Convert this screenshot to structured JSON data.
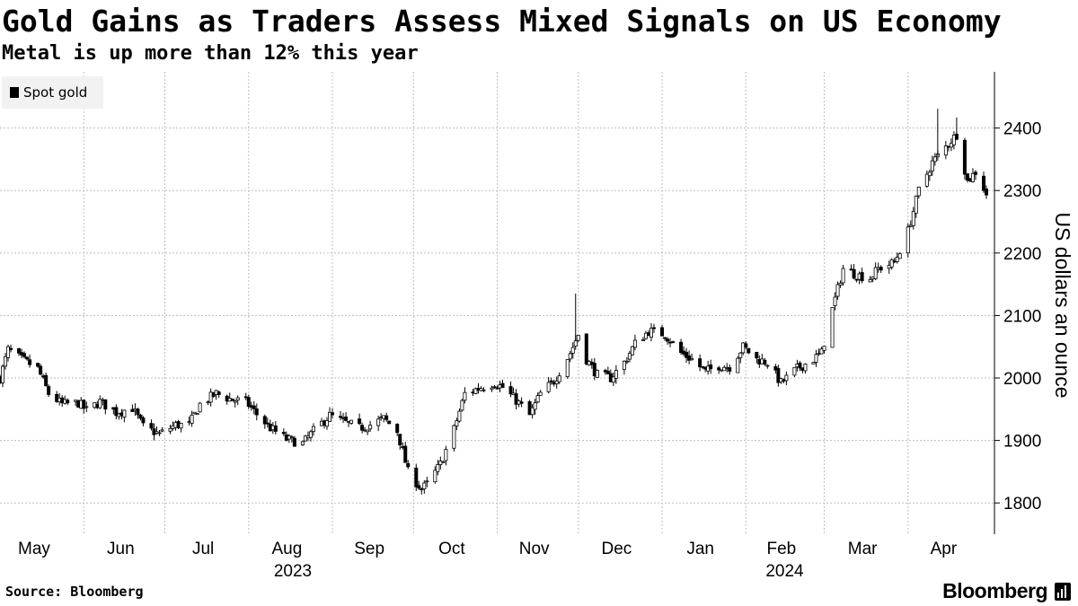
{
  "header": {
    "title": "Gold Gains as Traders Assess Mixed Signals on US Economy",
    "subtitle": "Metal is up more than 12% this year"
  },
  "footer": {
    "source": "Source: Bloomberg",
    "brand": "Bloomberg",
    "brand_icon": "bloomberg-terminal-icon"
  },
  "colors": {
    "candle": "#000000",
    "grid": "#bfbfbf",
    "legend_bg": "#f2f2f2",
    "background": "#ffffff"
  },
  "chart_data": {
    "type": "candlestick",
    "title": "Gold Gains as Traders Assess Mixed Signals on US Economy",
    "subtitle": "Metal is up more than 12% this year",
    "legend": [
      {
        "name": "Spot gold",
        "placement": "top-left"
      }
    ],
    "ylabel": "US dollars an ounce",
    "ylim": [
      1750,
      2490
    ],
    "yticks": [
      1800,
      1900,
      2000,
      2100,
      2200,
      2300,
      2400
    ],
    "y_axis_side": "right",
    "grid": true,
    "x_start": "2023-05-01",
    "x_end": "2024-04-30",
    "month_ticks": [
      {
        "label": "May",
        "date": "2023-05-01"
      },
      {
        "label": "Jun",
        "date": "2023-06-01"
      },
      {
        "label": "Jul",
        "date": "2023-07-01"
      },
      {
        "label": "Aug",
        "date": "2023-08-01"
      },
      {
        "label": "Sep",
        "date": "2023-09-01"
      },
      {
        "label": "Oct",
        "date": "2023-10-01"
      },
      {
        "label": "Nov",
        "date": "2023-11-01"
      },
      {
        "label": "Dec",
        "date": "2023-12-01"
      },
      {
        "label": "Jan",
        "date": "2024-01-01"
      },
      {
        "label": "Feb",
        "date": "2024-02-01"
      },
      {
        "label": "Mar",
        "date": "2024-03-01"
      },
      {
        "label": "Apr",
        "date": "2024-04-01"
      }
    ],
    "year_labels": [
      {
        "label": "2023",
        "date": "2023-09-01"
      },
      {
        "label": "2024",
        "date": "2024-03-01"
      }
    ],
    "series": [
      {
        "name": "Spot gold",
        "closes": [
          [
            "2023-05-01",
            2000
          ],
          [
            "2023-05-04",
            2045
          ],
          [
            "2023-05-09",
            2030
          ],
          [
            "2023-05-15",
            2015
          ],
          [
            "2023-05-19",
            1975
          ],
          [
            "2023-05-24",
            1958
          ],
          [
            "2023-05-30",
            1960
          ],
          [
            "2023-06-02",
            1948
          ],
          [
            "2023-06-07",
            1962
          ],
          [
            "2023-06-13",
            1945
          ],
          [
            "2023-06-19",
            1952
          ],
          [
            "2023-06-23",
            1922
          ],
          [
            "2023-06-29",
            1910
          ],
          [
            "2023-07-05",
            1925
          ],
          [
            "2023-07-10",
            1925
          ],
          [
            "2023-07-14",
            1958
          ],
          [
            "2023-07-20",
            1975
          ],
          [
            "2023-07-26",
            1965
          ],
          [
            "2023-07-31",
            1962
          ],
          [
            "2023-08-04",
            1942
          ],
          [
            "2023-08-09",
            1920
          ],
          [
            "2023-08-15",
            1902
          ],
          [
            "2023-08-21",
            1895
          ],
          [
            "2023-08-25",
            1915
          ],
          [
            "2023-08-31",
            1940
          ],
          [
            "2023-09-05",
            1930
          ],
          [
            "2023-09-11",
            1920
          ],
          [
            "2023-09-15",
            1925
          ],
          [
            "2023-09-20",
            1935
          ],
          [
            "2023-09-25",
            1915
          ],
          [
            "2023-09-29",
            1850
          ],
          [
            "2023-10-04",
            1822
          ],
          [
            "2023-10-06",
            1830
          ],
          [
            "2023-10-11",
            1862
          ],
          [
            "2023-10-16",
            1918
          ],
          [
            "2023-10-20",
            1975
          ],
          [
            "2023-10-26",
            1985
          ],
          [
            "2023-10-31",
            1992
          ],
          [
            "2023-11-03",
            1985
          ],
          [
            "2023-11-09",
            1960
          ],
          [
            "2023-11-13",
            1940
          ],
          [
            "2023-11-17",
            1975
          ],
          [
            "2023-11-22",
            1995
          ],
          [
            "2023-11-28",
            2040
          ],
          [
            "2023-12-01",
            2070
          ],
          [
            "2023-12-04",
            2030
          ],
          [
            "2023-12-08",
            2005
          ],
          [
            "2023-12-13",
            2000
          ],
          [
            "2023-12-18",
            2025
          ],
          [
            "2023-12-22",
            2055
          ],
          [
            "2023-12-27",
            2075
          ],
          [
            "2024-01-02",
            2070
          ],
          [
            "2024-01-08",
            2040
          ],
          [
            "2024-01-12",
            2030
          ],
          [
            "2024-01-17",
            2010
          ],
          [
            "2024-01-22",
            2020
          ],
          [
            "2024-01-26",
            2018
          ],
          [
            "2024-01-31",
            2050
          ],
          [
            "2024-02-05",
            2030
          ],
          [
            "2024-02-09",
            2025
          ],
          [
            "2024-02-14",
            1992
          ],
          [
            "2024-02-20",
            2015
          ],
          [
            "2024-02-26",
            2030
          ],
          [
            "2024-02-29",
            2040
          ],
          [
            "2024-03-04",
            2110
          ],
          [
            "2024-03-08",
            2175
          ],
          [
            "2024-03-13",
            2165
          ],
          [
            "2024-03-18",
            2160
          ],
          [
            "2024-03-21",
            2175
          ],
          [
            "2024-03-27",
            2185
          ],
          [
            "2024-04-01",
            2235
          ],
          [
            "2024-04-05",
            2300
          ],
          [
            "2024-04-10",
            2345
          ],
          [
            "2024-04-12",
            2355
          ],
          [
            "2024-04-16",
            2375
          ],
          [
            "2024-04-19",
            2390
          ],
          [
            "2024-04-23",
            2315
          ],
          [
            "2024-04-26",
            2330
          ],
          [
            "2024-04-30",
            2295
          ]
        ]
      }
    ]
  }
}
